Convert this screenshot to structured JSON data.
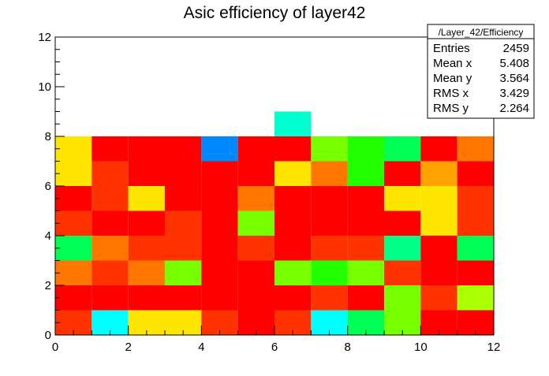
{
  "chart_data": {
    "type": "heatmap",
    "title": "Asic efficiency of layer42",
    "xlabel": "",
    "ylabel": "",
    "xlim": [
      0,
      12
    ],
    "ylim": [
      0,
      12
    ],
    "x_ticks": [
      "0",
      "2",
      "4",
      "6",
      "8",
      "10",
      "12"
    ],
    "y_ticks": [
      "0",
      "2",
      "4",
      "6",
      "8",
      "10",
      "12"
    ],
    "x_bin_width": 1,
    "y_bin_width": 1,
    "grid": false,
    "colormap": {
      "red": "#ff0000",
      "red_orange": "#ff3300",
      "orange": "#ff7700",
      "light_orange": "#ffa200",
      "yellow": "#ffe600",
      "yellow_green": "#aaff00",
      "lime": "#77ff00",
      "green": "#22ff00",
      "spring_green": "#00ff55",
      "aqua_green": "#00ff88",
      "aquamarine": "#00ffcc",
      "cyan": "#00ffff",
      "blue": "#0088ff"
    },
    "rows": [
      {
        "y": 0,
        "colors": [
          "red_orange",
          "cyan",
          "yellow",
          "yellow",
          "red_orange",
          "red",
          "red_orange",
          "cyan",
          "spring_green",
          "lime",
          "red",
          "red"
        ]
      },
      {
        "y": 1,
        "colors": [
          "red",
          "red",
          "red",
          "red",
          "red",
          "red",
          "red",
          "red_orange",
          "red",
          "lime",
          "red_orange",
          "yellow_green"
        ]
      },
      {
        "y": 2,
        "colors": [
          "orange",
          "red_orange",
          "orange",
          "lime",
          "red",
          "red",
          "lime",
          "green",
          "lime",
          "red_orange",
          "red",
          "red"
        ]
      },
      {
        "y": 3,
        "colors": [
          "spring_green",
          "orange",
          "red_orange",
          "red_orange",
          "red",
          "red_orange",
          "red",
          "red_orange",
          "red_orange",
          "aqua_green",
          "red",
          "spring_green"
        ]
      },
      {
        "y": 4,
        "colors": [
          "red_orange",
          "red",
          "red",
          "red_orange",
          "red",
          "lime",
          "red",
          "red",
          "red",
          "red",
          "yellow",
          "red_orange"
        ]
      },
      {
        "y": 5,
        "colors": [
          "red",
          "red_orange",
          "yellow",
          "red",
          "red",
          "orange",
          "red",
          "red",
          "red",
          "yellow",
          "yellow",
          "red_orange"
        ]
      },
      {
        "y": 6,
        "colors": [
          "yellow",
          "red_orange",
          "red",
          "red",
          "red",
          "red",
          "yellow",
          "orange",
          "green",
          "red",
          "light_orange",
          "red"
        ]
      },
      {
        "y": 7,
        "colors": [
          "yellow",
          "red",
          "red",
          "red",
          "blue",
          "red",
          "red",
          "lime",
          "green",
          "spring_green",
          "red",
          "orange"
        ]
      },
      {
        "y": 8,
        "colors": [
          null,
          null,
          null,
          null,
          null,
          null,
          "aquamarine",
          null,
          null,
          null,
          null,
          null
        ]
      }
    ],
    "stats_box": {
      "title": "/Layer_42/Efficiency",
      "placement": "top-right",
      "entries": [
        {
          "label": "Entries",
          "value": "2459"
        },
        {
          "label": "Mean x",
          "value": "5.408"
        },
        {
          "label": "Mean y",
          "value": "3.564"
        },
        {
          "label": "RMS x",
          "value": "3.429"
        },
        {
          "label": "RMS y",
          "value": "2.264"
        }
      ]
    }
  }
}
